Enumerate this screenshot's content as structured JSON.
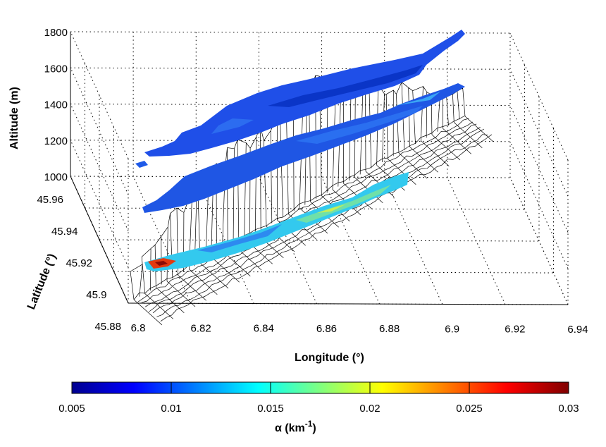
{
  "chart_data": {
    "type": "surface3d",
    "xlabel": "Longitude (°)",
    "ylabel": "Latitude (°)",
    "zlabel": "Altitude (m)",
    "x_ticks": [
      "6.8",
      "6.82",
      "6.84",
      "6.86",
      "6.88",
      "6.9",
      "6.92",
      "6.94"
    ],
    "y_ticks": [
      "45.88",
      "45.9",
      "45.92",
      "45.94",
      "45.96"
    ],
    "z_ticks": [
      "1000",
      "1200",
      "1400",
      "1600",
      "1800"
    ],
    "xlim": [
      6.8,
      6.94
    ],
    "ylim": [
      45.88,
      45.96
    ],
    "zlim": [
      1000,
      1800
    ],
    "grid": true,
    "layers": [
      {
        "altitude": 1000,
        "alpha_typical": 0.015
      },
      {
        "altitude": 1250,
        "alpha_typical": 0.009
      },
      {
        "altitude": 1450,
        "alpha_typical": 0.008
      }
    ],
    "colorbar": {
      "label_main": "α  (km",
      "label_exp": "-1",
      "label_close": ")",
      "ticks": [
        "0.005",
        "0.01",
        "0.015",
        "0.02",
        "0.025",
        "0.03"
      ],
      "range": [
        0.005,
        0.03
      ],
      "colormap": "jet",
      "placement": "bottom"
    }
  }
}
